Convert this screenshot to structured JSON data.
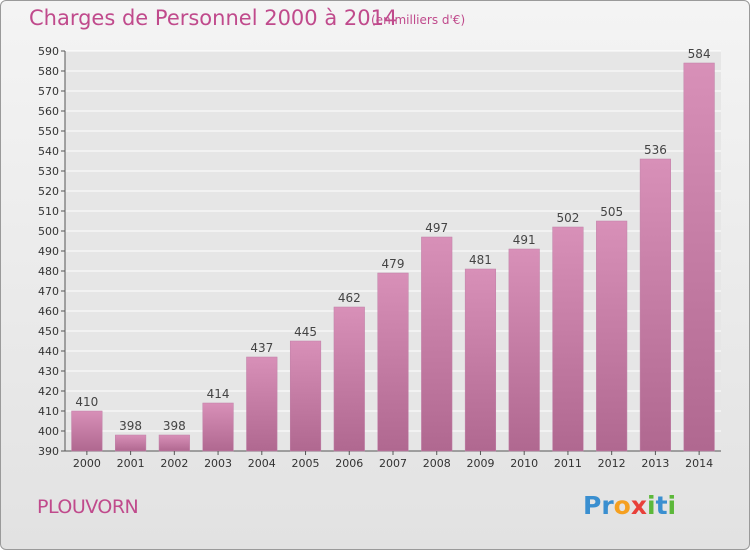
{
  "header": {
    "title": "Charges de Personnel 2000 à 2014",
    "subtitle": "(en milliers d'€)"
  },
  "footer": {
    "place": "PLOUVORN",
    "logo_letters": [
      {
        "char": "P",
        "color": "#3a8fd0"
      },
      {
        "char": "r",
        "color": "#3a8fd0"
      },
      {
        "char": "o",
        "color": "#f5a020"
      },
      {
        "char": "x",
        "color": "#e8403a"
      },
      {
        "char": "i",
        "color": "#5cb83a"
      },
      {
        "char": "t",
        "color": "#3a8fd0"
      },
      {
        "char": "i",
        "color": "#5cb83a"
      }
    ]
  },
  "chart_data": {
    "type": "bar",
    "title": "Charges de Personnel 2000 à 2014",
    "subtitle": "(en milliers d'€)",
    "categories": [
      "2000",
      "2001",
      "2002",
      "2003",
      "2004",
      "2005",
      "2006",
      "2007",
      "2008",
      "2009",
      "2010",
      "2011",
      "2012",
      "2013",
      "2014"
    ],
    "values": [
      410,
      398,
      398,
      414,
      437,
      445,
      462,
      479,
      497,
      481,
      491,
      502,
      505,
      536,
      584
    ],
    "ylim": [
      390,
      590
    ],
    "yticks": [
      390,
      400,
      410,
      420,
      430,
      440,
      450,
      460,
      470,
      480,
      490,
      500,
      510,
      520,
      530,
      540,
      550,
      560,
      570,
      580,
      590
    ],
    "grid": true,
    "bar_color": "#d890b8",
    "bar_color_dark": "#b06890",
    "label_color": "#444444"
  }
}
